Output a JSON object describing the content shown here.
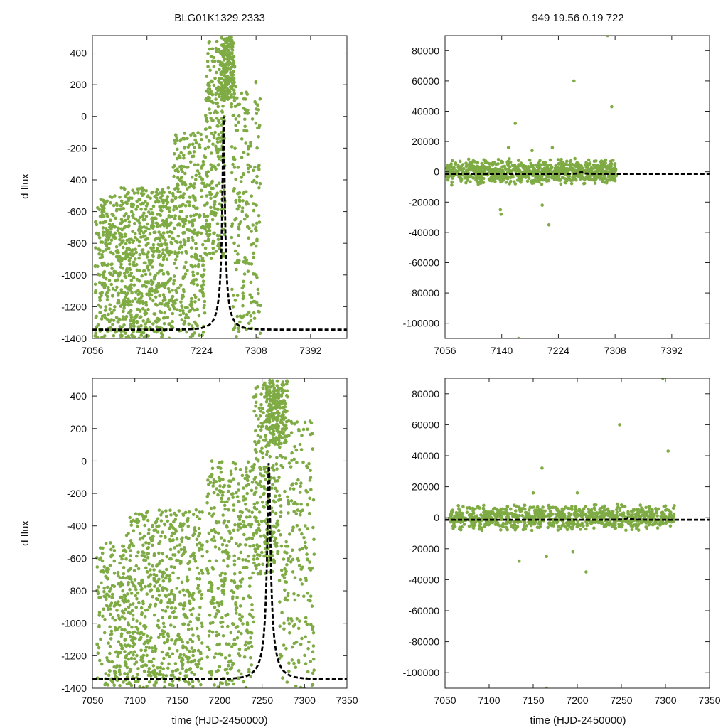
{
  "chart_data": [
    {
      "type": "scatter",
      "title": "BLG01K1329.2333",
      "xlabel": "",
      "ylabel": "d flux",
      "xlim": [
        7056,
        7448
      ],
      "ylim": [
        -1400,
        510
      ],
      "xticks": [
        7056,
        7140,
        7224,
        7308,
        7392
      ],
      "yticks": [
        -1400,
        -1200,
        -1000,
        -800,
        -600,
        -400,
        -200,
        0,
        200,
        400
      ],
      "point_color": "#7fab45",
      "model_color": "#000000",
      "model": {
        "type": "paczynski",
        "t0": 7258,
        "tE": 19,
        "u0": 0.085,
        "base": -1470,
        "amp": 125
      },
      "series": [
        {
          "name": "data",
          "clusters": [
            {
              "x_range": [
                7060,
                7100
              ],
              "y_range": [
                -1400,
                -500
              ],
              "count": 250
            },
            {
              "x_range": [
                7100,
                7180
              ],
              "y_range": [
                -1400,
                -450
              ],
              "count": 600
            },
            {
              "x_range": [
                7180,
                7230
              ],
              "y_range": [
                -1400,
                -100
              ],
              "count": 350
            },
            {
              "x_range": [
                7230,
                7260
              ],
              "y_range": [
                -900,
                480
              ],
              "count": 260
            },
            {
              "x_range": [
                7255,
                7275
              ],
              "y_range": [
                100,
                500
              ],
              "count": 200
            },
            {
              "x_range": [
                7270,
                7315
              ],
              "y_range": [
                -1400,
                250
              ],
              "count": 220
            }
          ]
        }
      ]
    },
    {
      "type": "scatter",
      "title": "949  19.56  0.19  722",
      "xlabel": "",
      "ylabel": "",
      "xlim": [
        7056,
        7448
      ],
      "ylim": [
        -110000,
        90000
      ],
      "xticks": [
        7056,
        7140,
        7224,
        7308,
        7392
      ],
      "yticks": [
        -100000,
        -80000,
        -60000,
        -40000,
        -20000,
        0,
        20000,
        40000,
        60000,
        80000
      ],
      "point_color": "#7fab45",
      "model_color": "#000000",
      "model": {
        "type": "paczynski",
        "t0": 7258,
        "tE": 19,
        "u0": 0.085,
        "base": -1470,
        "amp": 125
      },
      "series": [
        {
          "name": "data",
          "clusters": [
            {
              "x_range": [
                7058,
                7310
              ],
              "y_range": [
                -9000,
                9000
              ],
              "count": 900
            }
          ],
          "outliers": [
            {
              "x": 7138,
              "y": -25000
            },
            {
              "x": 7139,
              "y": -28000
            },
            {
              "x": 7160,
              "y": 32000
            },
            {
              "x": 7165,
              "y": -110000
            },
            {
              "x": 7200,
              "y": -22000
            },
            {
              "x": 7210,
              "y": -35000
            },
            {
              "x": 7247,
              "y": 60000
            },
            {
              "x": 7297,
              "y": 90000
            },
            {
              "x": 7303,
              "y": 43000
            },
            {
              "x": 7150,
              "y": 16000
            },
            {
              "x": 7185,
              "y": 14000
            },
            {
              "x": 7215,
              "y": 16000
            }
          ]
        }
      ]
    },
    {
      "type": "scatter",
      "title": "",
      "xlabel": "time (HJD-2450000)",
      "ylabel": "d flux",
      "xlim": [
        7050,
        7350
      ],
      "ylim": [
        -1400,
        510
      ],
      "xticks": [
        7050,
        7100,
        7150,
        7200,
        7250,
        7300,
        7350
      ],
      "yticks": [
        -1400,
        -1200,
        -1000,
        -800,
        -600,
        -400,
        -200,
        0,
        200,
        400
      ],
      "point_color": "#7fab45",
      "model_color": "#000000",
      "model": {
        "type": "paczynski",
        "t0": 7258,
        "tE": 19,
        "u0": 0.085,
        "base": -1470,
        "amp": 125
      },
      "series": [
        {
          "name": "data",
          "clusters": [
            {
              "x_range": [
                7055,
                7090
              ],
              "y_range": [
                -1400,
                -500
              ],
              "count": 200
            },
            {
              "x_range": [
                7090,
                7180
              ],
              "y_range": [
                -1400,
                -300
              ],
              "count": 650
            },
            {
              "x_range": [
                7185,
                7240
              ],
              "y_range": [
                -1400,
                0
              ],
              "count": 380
            },
            {
              "x_range": [
                7240,
                7270
              ],
              "y_range": [
                -700,
                480
              ],
              "count": 260
            },
            {
              "x_range": [
                7255,
                7280
              ],
              "y_range": [
                100,
                500
              ],
              "count": 200
            },
            {
              "x_range": [
                7270,
                7312
              ],
              "y_range": [
                -1400,
                250
              ],
              "count": 220
            }
          ]
        }
      ]
    },
    {
      "type": "scatter",
      "title": "",
      "xlabel": "time (HJD-2450000)",
      "ylabel": "",
      "xlim": [
        7050,
        7350
      ],
      "ylim": [
        -110000,
        90000
      ],
      "xticks": [
        7050,
        7100,
        7150,
        7200,
        7250,
        7300,
        7350
      ],
      "yticks": [
        -100000,
        -80000,
        -60000,
        -40000,
        -20000,
        0,
        20000,
        40000,
        60000,
        80000
      ],
      "point_color": "#7fab45",
      "model_color": "#000000",
      "model": {
        "type": "paczynski",
        "t0": 7258,
        "tE": 19,
        "u0": 0.085,
        "base": -1470,
        "amp": 125
      },
      "series": [
        {
          "name": "data",
          "clusters": [
            {
              "x_range": [
                7055,
                7310
              ],
              "y_range": [
                -9000,
                9000
              ],
              "count": 900
            }
          ],
          "outliers": [
            {
              "x": 7134,
              "y": -28000
            },
            {
              "x": 7150,
              "y": 16000
            },
            {
              "x": 7160,
              "y": 32000
            },
            {
              "x": 7165,
              "y": -110000
            },
            {
              "x": 7165,
              "y": -25000
            },
            {
              "x": 7200,
              "y": 16000
            },
            {
              "x": 7210,
              "y": -35000
            },
            {
              "x": 7248,
              "y": 60000
            },
            {
              "x": 7297,
              "y": 90000
            },
            {
              "x": 7303,
              "y": 43000
            },
            {
              "x": 7195,
              "y": -22000
            }
          ]
        }
      ]
    }
  ]
}
